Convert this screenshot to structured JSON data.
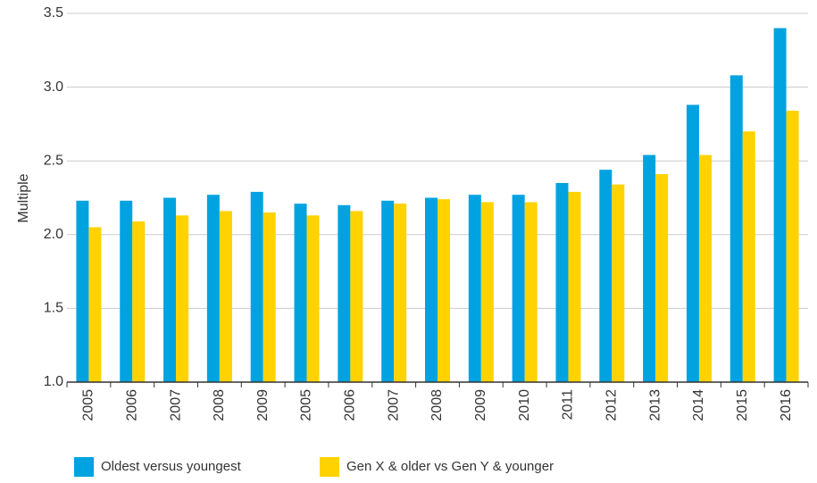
{
  "chart_data": {
    "type": "bar",
    "y_label": "Multiple",
    "categories": [
      "2005",
      "2006",
      "2007",
      "2008",
      "2009",
      "2005",
      "2006",
      "2007",
      "2008",
      "2009",
      "2010",
      "2011",
      "2012",
      "2013",
      "2014",
      "2015",
      "2016"
    ],
    "series": [
      {
        "name": "Oldest versus youngest",
        "color": "#00a3e0",
        "values": [
          2.23,
          2.23,
          2.25,
          2.27,
          2.29,
          2.21,
          2.2,
          2.23,
          2.25,
          2.27,
          2.27,
          2.35,
          2.44,
          2.54,
          2.88,
          3.08,
          3.4
        ]
      },
      {
        "name": "Gen X & older vs Gen Y & younger",
        "color": "#ffd200",
        "values": [
          2.05,
          2.09,
          2.13,
          2.16,
          2.15,
          2.13,
          2.16,
          2.21,
          2.24,
          2.22,
          2.22,
          2.29,
          2.34,
          2.41,
          2.54,
          2.7,
          2.84
        ]
      }
    ],
    "ylim": [
      1,
      3.5
    ],
    "yticks": [
      {
        "value": 1,
        "label": "1.0"
      },
      1.5,
      {
        "value": 2,
        "label": "2.0"
      },
      2.5,
      {
        "value": 3,
        "label": "3.0"
      },
      3.5
    ],
    "grid": true
  }
}
